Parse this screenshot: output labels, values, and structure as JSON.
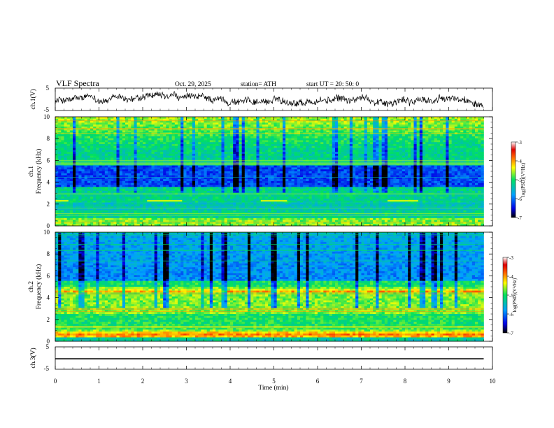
{
  "header": {
    "title": "VLF  Spectra",
    "date": "Oct. 29, 2025",
    "station": "station= ATH",
    "start": "start  UT  =    20: 50: 0"
  },
  "chart_data": [
    {
      "type": "line",
      "panel": "ch.1 waveform",
      "ylabel": "ch.1(V)",
      "ylim": [
        -5,
        5
      ],
      "y_tick_labels": [
        "5",
        "-5"
      ],
      "xlim": [
        0,
        10
      ],
      "data_extent_min": [
        0,
        9.8
      ],
      "series": [
        {
          "name": "ch.1",
          "y_mean": -0.4,
          "y_amplitude_range": [
            -3.5,
            3.5
          ]
        }
      ]
    },
    {
      "type": "heatmap",
      "panel": "ch.1 spectrogram",
      "ylabel": "ch.1\nFrequency  (kHz)",
      "ylim": [
        0,
        10
      ],
      "y_tick_labels": [
        "0",
        "2",
        "4",
        "6",
        "8",
        "10"
      ],
      "xlim": [
        0,
        10
      ],
      "colorbar": {
        "label": "log(PSD)(V²/Hz)",
        "range": [
          -7,
          -3
        ],
        "tick_labels": [
          "-3",
          "-4",
          "-5",
          "-6",
          "-7"
        ]
      },
      "features_khz": [
        {
          "name": "quiet band",
          "from": 3.5,
          "to": 5.5,
          "log_psd": -6.2
        },
        {
          "name": "emission line",
          "freq": 2.3,
          "log_psd": -4.5,
          "segments_min": [
            [
              0,
              0.3
            ],
            [
              2.1,
              2.9
            ],
            [
              4.7,
              5.3
            ],
            [
              7.6,
              8.3
            ]
          ]
        },
        {
          "name": "high-frequency activity",
          "from": 7.5,
          "to": 10,
          "log_psd": -4.6
        }
      ]
    },
    {
      "type": "heatmap",
      "panel": "ch.2 spectrogram",
      "ylabel": "ch.2\nFrequency  (kHz)",
      "ylim": [
        0,
        10
      ],
      "y_tick_labels": [
        "0",
        "2",
        "4",
        "6",
        "8",
        "10"
      ],
      "xlim": [
        0,
        10
      ],
      "colorbar": {
        "label": "log(PSD)(V²/Hz)",
        "range": [
          -7,
          -3
        ],
        "tick_labels": [
          "-3",
          "-4",
          "-5",
          "-6",
          "-7"
        ]
      },
      "features_khz": [
        {
          "name": "quiet band",
          "from": 5.5,
          "to": 10,
          "log_psd": -5.9
        },
        {
          "name": "strong low-frequency band",
          "freq": 0.6,
          "log_psd": -3.8
        },
        {
          "name": "emission line",
          "freq": 4.6,
          "log_psd": -4.2
        }
      ]
    },
    {
      "type": "line",
      "panel": "ch.3 waveform",
      "ylabel": "ch.3(V)",
      "ylim": [
        -5,
        5
      ],
      "y_tick_labels": [
        "5",
        "-5"
      ],
      "xlim": [
        0,
        10
      ],
      "xlabel": "Time  (min)",
      "x_tick_labels": [
        "0",
        "1",
        "2",
        "3",
        "4",
        "5",
        "6",
        "7",
        "8",
        "9",
        "10"
      ],
      "data_extent_min": [
        0,
        9.8
      ],
      "series": [
        {
          "name": "ch.3",
          "y_mean": -1.5,
          "y_amplitude_range": [
            -0.3,
            0.3
          ]
        }
      ]
    }
  ]
}
